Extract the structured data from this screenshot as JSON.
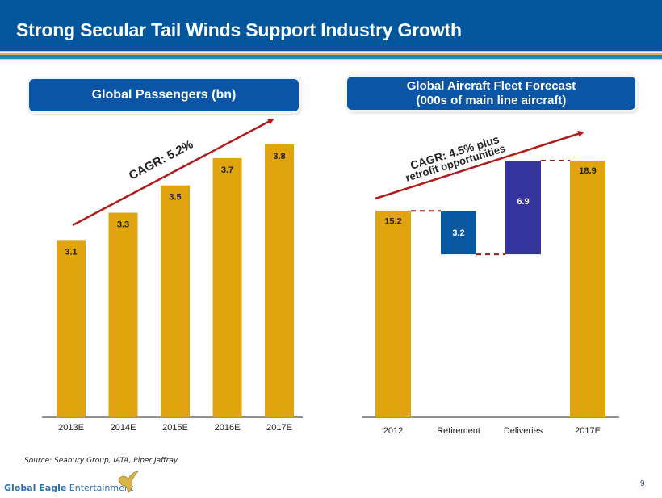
{
  "header": {
    "title": "Strong Secular Tail Winds Support Industry Growth"
  },
  "panels": {
    "left_title": "Global Passengers (bn)",
    "right_title_line1": "Global Aircraft Fleet Forecast",
    "right_title_line2": "(000s of main line aircraft)"
  },
  "chart_data": [
    {
      "type": "bar",
      "title": "Global Passengers (bn)",
      "categories": [
        "2013E",
        "2014E",
        "2015E",
        "2016E",
        "2017E"
      ],
      "values": [
        3.1,
        3.3,
        3.5,
        3.7,
        3.8
      ],
      "labels": [
        "3.1",
        "3.3",
        "3.5",
        "3.7",
        "3.8"
      ],
      "annotation": "CAGR: 5.2%",
      "bar_color": "#e0a40f",
      "ylim": [
        1.8,
        3.8
      ],
      "grid": false,
      "xlabel": "",
      "ylabel": ""
    },
    {
      "type": "bar",
      "subtype": "waterfall",
      "title": "Global Aircraft Fleet Forecast (000s of main line aircraft)",
      "categories": [
        "2012",
        "Retirement",
        "Deliveries",
        "2017E"
      ],
      "values": [
        15.2,
        -3.2,
        6.9,
        18.9
      ],
      "labels": [
        "15.2",
        "3.2",
        "6.9",
        "18.9"
      ],
      "colors": [
        "#e0a40f",
        "#08589f",
        "#34349c",
        "#e0a40f"
      ],
      "annotation_line1": "CAGR: 4.5% plus",
      "annotation_line2": "retrofit opportunities",
      "ylim": [
        0,
        18.9
      ],
      "grid": false,
      "xlabel": "",
      "ylabel": ""
    }
  ],
  "footer": {
    "source": "Source:  Seabury Group, IATA,  Piper Jaffray",
    "logo_bold": "Global Eagle",
    "logo_rest": " Entertainment",
    "page_number": "9"
  },
  "colors": {
    "brand_blue": "#02569b",
    "arrow_red": "#b01c1c",
    "bar_gold": "#e0a40f"
  }
}
